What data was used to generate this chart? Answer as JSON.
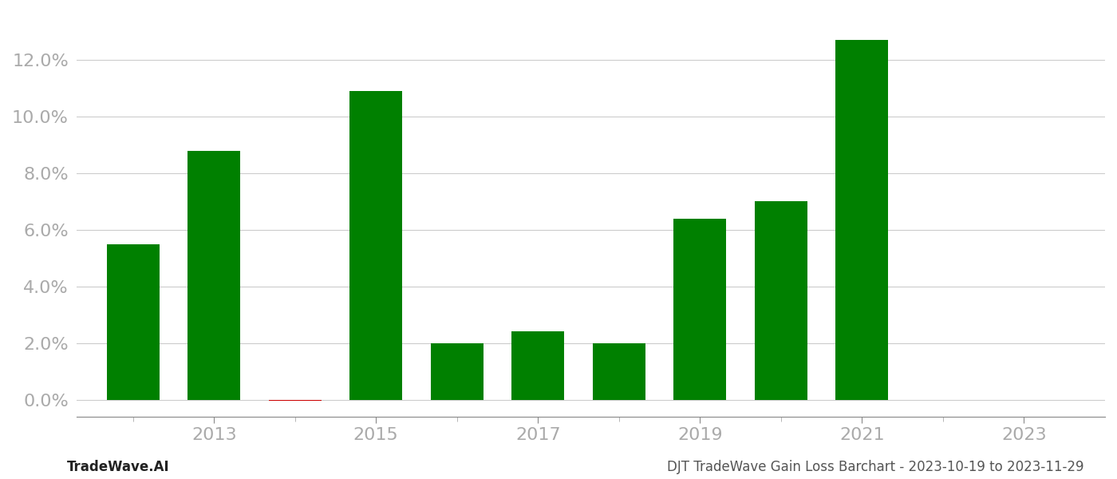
{
  "years": [
    2012,
    2013,
    2014,
    2015,
    2016,
    2017,
    2018,
    2019,
    2020,
    2021,
    2022
  ],
  "values": [
    0.055,
    0.088,
    -0.0005,
    0.109,
    0.02,
    0.024,
    0.02,
    0.064,
    0.07,
    0.127,
    0.0
  ],
  "bar_colors": [
    "#008000",
    "#008000",
    "#cc0000",
    "#008000",
    "#008000",
    "#008000",
    "#008000",
    "#008000",
    "#008000",
    "#008000",
    "#008000"
  ],
  "xtick_label_positions": [
    2013,
    2015,
    2017,
    2019,
    2021,
    2023
  ],
  "xtick_label_texts": [
    "2013",
    "2015",
    "2017",
    "2019",
    "2021",
    "2023"
  ],
  "xtick_minor_positions": [
    2012,
    2013,
    2014,
    2015,
    2016,
    2017,
    2018,
    2019,
    2020,
    2021,
    2022,
    2023
  ],
  "ytick_labels": [
    "0.0%",
    "2.0%",
    "4.0%",
    "6.0%",
    "8.0%",
    "10.0%",
    "12.0%"
  ],
  "ytick_values": [
    0.0,
    0.02,
    0.04,
    0.06,
    0.08,
    0.1,
    0.12
  ],
  "ylim": [
    -0.006,
    0.137
  ],
  "xlim": [
    2011.3,
    2024.0
  ],
  "footer_left": "TradeWave.AI",
  "footer_right": "DJT TradeWave Gain Loss Barchart - 2023-10-19 to 2023-11-29",
  "background_color": "#ffffff",
  "grid_color": "#cccccc",
  "bar_width": 0.65,
  "footer_fontsize": 12,
  "tick_fontsize": 16,
  "tick_color": "#aaaaaa"
}
